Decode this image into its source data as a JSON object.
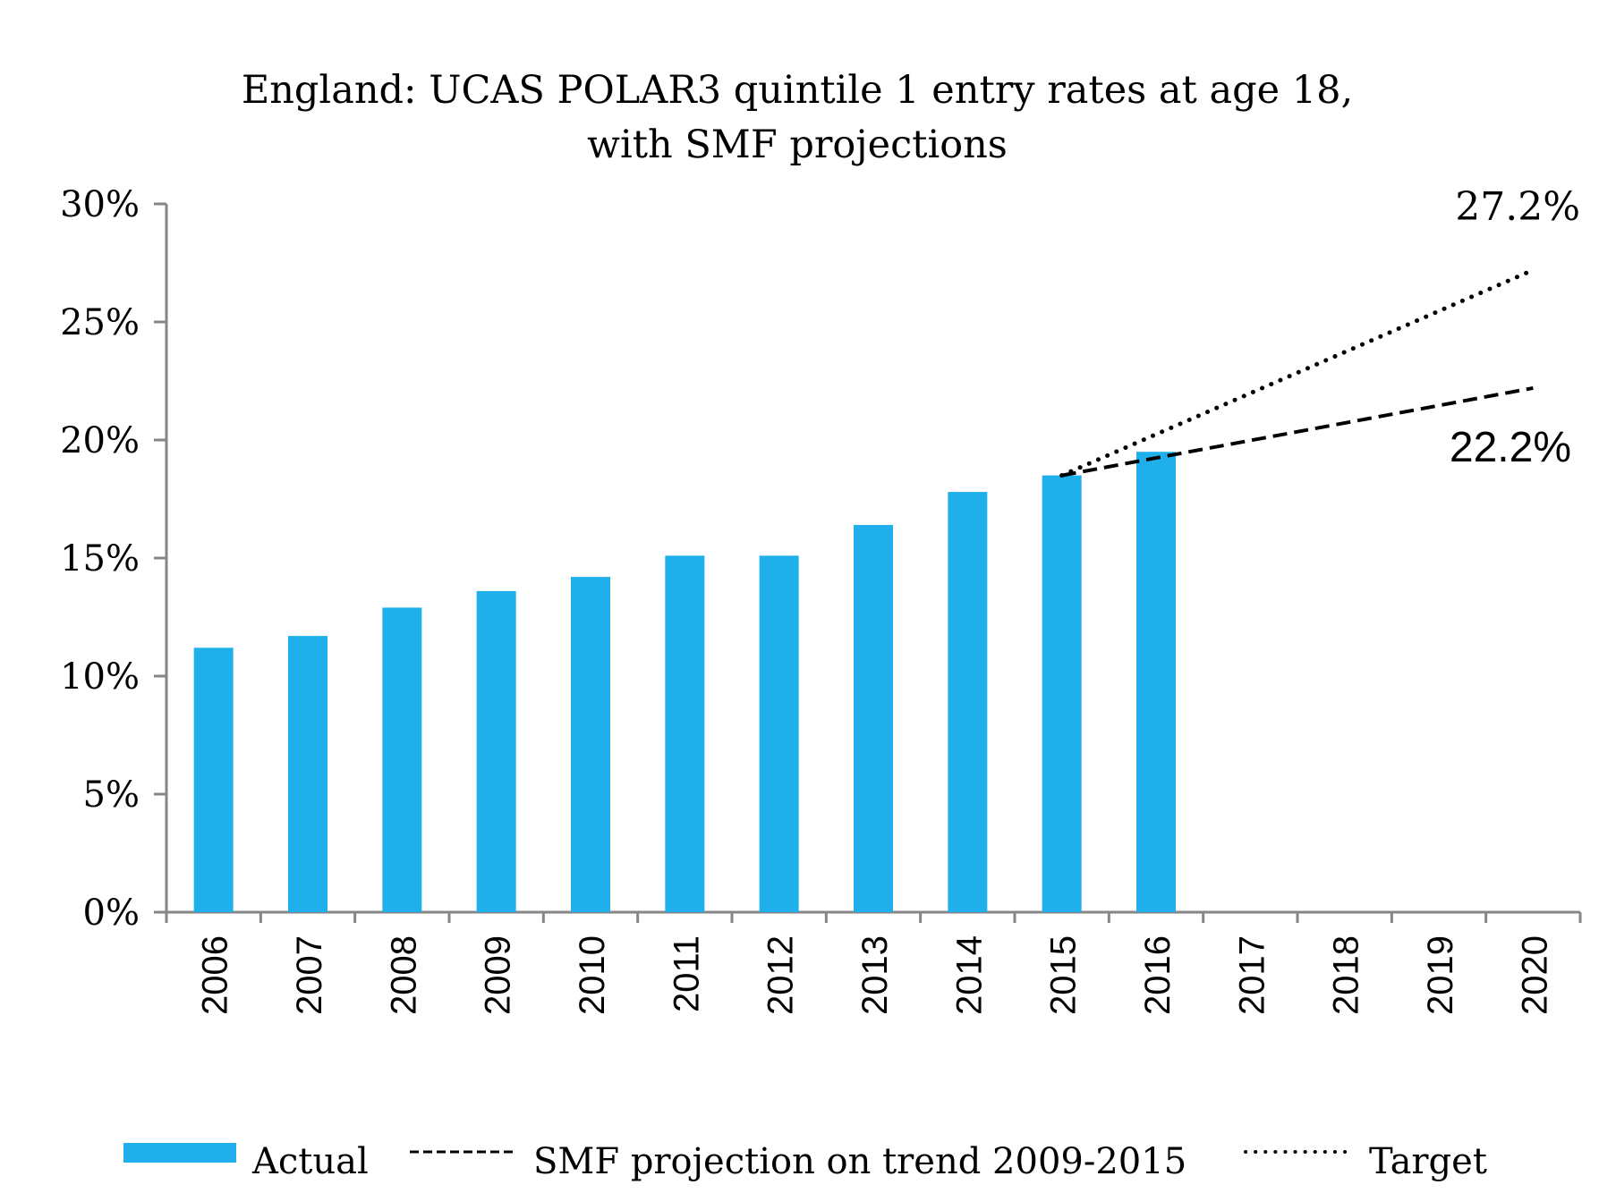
{
  "chart_data": {
    "type": "bar",
    "title": "England: UCAS POLAR3 quintile 1 entry rates at age 18,",
    "subtitle": "with SMF projections",
    "xlabel": "",
    "ylabel": "",
    "categories": [
      "2006",
      "2007",
      "2008",
      "2009",
      "2010",
      "2011",
      "2012",
      "2013",
      "2014",
      "2015",
      "2016",
      "2017",
      "2018",
      "2019",
      "2020"
    ],
    "ylim": [
      0,
      30
    ],
    "y_ticks": [
      0,
      5,
      10,
      15,
      20,
      25,
      30
    ],
    "y_tick_labels": [
      "0%",
      "5%",
      "10%",
      "15%",
      "20%",
      "25%",
      "30%"
    ],
    "grid": false,
    "series": [
      {
        "name": "Actual",
        "kind": "bar",
        "color": "#1fb0ec",
        "values": [
          11.2,
          11.7,
          12.9,
          13.6,
          14.2,
          15.1,
          15.1,
          16.4,
          17.8,
          18.5,
          19.5,
          null,
          null,
          null,
          null
        ]
      },
      {
        "name": "SMF projection on trend 2009-2015",
        "kind": "line",
        "style": "dashed",
        "color": "#000000",
        "points": [
          {
            "x": "2015",
            "y": 18.5
          },
          {
            "x": "2020",
            "y": 22.2
          }
        ]
      },
      {
        "name": "Target",
        "kind": "line",
        "style": "dotted",
        "color": "#000000",
        "points": [
          {
            "x": "2015",
            "y": 18.5
          },
          {
            "x": "2020",
            "y": 27.2
          }
        ]
      }
    ],
    "annotations": [
      {
        "text": "27.2%",
        "series": "Target",
        "x": "2020",
        "y": 27.2,
        "font": "serif"
      },
      {
        "text": "22.2%",
        "series": "SMF projection on trend 2009-2015",
        "x": "2020",
        "y": 22.2,
        "font": "sans"
      }
    ],
    "legend": {
      "position": "bottom",
      "entries": [
        {
          "label": "Actual",
          "swatch": "bar"
        },
        {
          "label": "SMF projection on trend 2009-2015",
          "swatch": "dashed"
        },
        {
          "label": "Target",
          "swatch": "dotted"
        }
      ]
    },
    "axis_color": "#868686"
  }
}
